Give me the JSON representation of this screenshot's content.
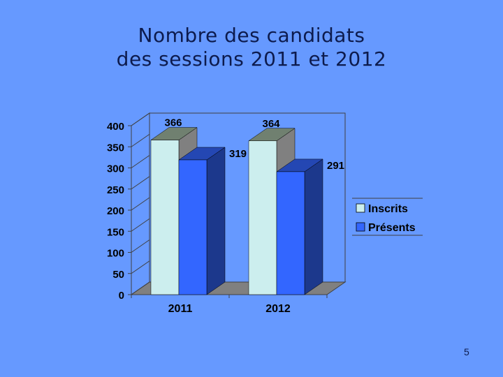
{
  "slide": {
    "title_line1": "Nombre des candidats",
    "title_line2": "des sessions 2011 et 2012",
    "page_number": "5"
  },
  "chart_data": {
    "type": "bar",
    "categories": [
      "2011",
      "2012"
    ],
    "series": [
      {
        "name": "Inscrits",
        "values": [
          366,
          364
        ],
        "color": "#cceeee"
      },
      {
        "name": "Présents",
        "values": [
          319,
          291
        ],
        "color": "#3366ff"
      }
    ],
    "ylim": [
      0,
      400
    ],
    "yticks": [
      0,
      50,
      100,
      150,
      200,
      250,
      300,
      350,
      400
    ],
    "grid": false,
    "legend_position": "right",
    "three_d": true,
    "data_labels": true
  }
}
